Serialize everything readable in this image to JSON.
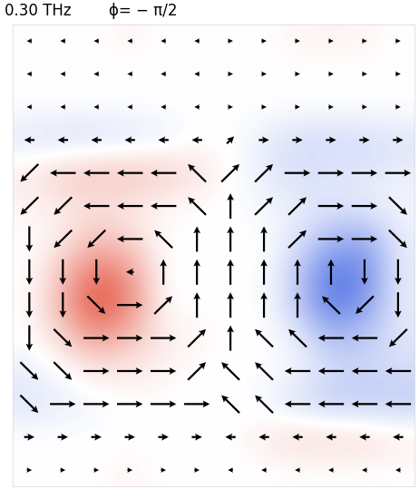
{
  "chart_data": {
    "type": "quiver",
    "title": "0.30 THz",
    "subtitle": "ϕ= − π/2",
    "tick_labels": false,
    "color": "#000000",
    "xlim": [
      -0.5,
      11.5
    ],
    "ylim": [
      -0.5,
      13.5
    ],
    "x": [
      0,
      1,
      2,
      3,
      4,
      5,
      6,
      7,
      8,
      9,
      10,
      11
    ],
    "y": [
      13,
      12,
      11,
      10,
      9,
      8,
      7,
      6,
      5,
      4,
      3,
      2,
      1,
      0
    ],
    "u": [
      [
        -0.2,
        -0.2,
        -0.2,
        -0.2,
        -0.2,
        -0.2,
        0.2,
        0.2,
        0.2,
        0.2,
        0.2,
        0.2
      ],
      [
        -0.2,
        -0.2,
        -0.2,
        -0.2,
        -0.2,
        -0.2,
        0.2,
        0.2,
        0.2,
        0.2,
        0.2,
        0.2
      ],
      [
        -0.2,
        -0.2,
        -0.2,
        -0.2,
        -0.2,
        -0.2,
        0.2,
        0.2,
        0.2,
        0.2,
        0.2,
        0.2
      ],
      [
        -0.4,
        -0.4,
        -0.4,
        -0.4,
        -0.4,
        -0.4,
        0.28,
        0.4,
        0.4,
        0.4,
        0.4,
        0.4
      ],
      [
        -0.7,
        -1,
        -1,
        -1,
        -1,
        -0.7,
        0.7,
        0.7,
        1,
        1,
        1,
        1
      ],
      [
        -0.7,
        -0.7,
        -1,
        -1,
        -1,
        -0.7,
        0,
        0.7,
        0.7,
        1,
        1,
        0.7
      ],
      [
        0,
        -0.7,
        -0.7,
        -1,
        -0.7,
        0,
        0,
        0,
        0.7,
        1,
        1,
        0.7
      ],
      [
        0,
        0,
        0,
        -0.3,
        0,
        0,
        0,
        0,
        0,
        0,
        0,
        0
      ],
      [
        0,
        0,
        0.7,
        1,
        0.7,
        0,
        0,
        0,
        0,
        -0.7,
        -0.7,
        0
      ],
      [
        0,
        0.7,
        1,
        1,
        1,
        0.7,
        0,
        -0.7,
        -0.7,
        -1,
        -1,
        -0.7
      ],
      [
        0.7,
        0.7,
        1,
        1,
        1,
        0.7,
        -0.7,
        -0.7,
        -1,
        -1,
        -1,
        -1
      ],
      [
        0.7,
        1,
        1,
        1,
        1,
        1,
        -0.7,
        -0.7,
        -1,
        -1,
        -1,
        -1
      ],
      [
        0.4,
        0.4,
        0.4,
        0.4,
        0.4,
        0.4,
        -0.4,
        -0.4,
        -0.4,
        -0.4,
        -0.4,
        -0.4
      ],
      [
        0.2,
        0.2,
        0.2,
        0.2,
        0.2,
        0.2,
        -0.2,
        -0.2,
        -0.2,
        -0.2,
        -0.2,
        -0.2
      ]
    ],
    "v": [
      [
        0,
        0,
        0,
        0,
        0,
        0,
        0,
        0,
        0,
        0,
        0,
        0
      ],
      [
        0,
        0,
        0,
        0,
        0,
        0,
        0,
        0,
        0,
        0,
        0,
        0
      ],
      [
        0,
        0,
        0,
        0,
        0,
        0,
        0,
        0,
        0,
        0,
        0,
        0
      ],
      [
        0,
        0,
        0,
        0,
        0,
        0,
        0.28,
        0,
        0,
        0,
        0,
        0
      ],
      [
        -0.7,
        0,
        0,
        0,
        0,
        0.7,
        0.7,
        0.7,
        0,
        0,
        0,
        0
      ],
      [
        -0.7,
        -0.7,
        0,
        0,
        0,
        0.7,
        1,
        0.7,
        0.7,
        0,
        0,
        -0.7
      ],
      [
        -1,
        -0.7,
        -0.7,
        0,
        0.7,
        1,
        1,
        1,
        0.7,
        0,
        0,
        -0.7
      ],
      [
        -1,
        -1,
        -1,
        0,
        1,
        1,
        1,
        1,
        1,
        1,
        -1,
        -1
      ],
      [
        -1,
        -1,
        -0.7,
        0,
        0.7,
        1,
        1,
        1,
        1,
        0.7,
        -0.7,
        -1
      ],
      [
        -1,
        -0.7,
        0,
        0,
        0,
        0.7,
        1,
        0.7,
        0.7,
        0,
        0,
        -0.7
      ],
      [
        -0.7,
        -0.7,
        0,
        0,
        0,
        0.7,
        0.7,
        0.7,
        0,
        0,
        0,
        0
      ],
      [
        -0.7,
        0,
        0,
        0,
        0,
        0,
        0.7,
        0.7,
        0,
        0,
        0,
        0
      ],
      [
        0,
        0,
        0,
        0,
        0,
        0,
        0,
        0,
        0,
        0,
        0,
        0
      ],
      [
        0,
        0,
        0,
        0,
        0,
        0,
        0,
        0,
        0,
        0,
        0,
        0
      ]
    ],
    "cells": [
      [
        0,
        0,
        0,
        0.05,
        0,
        0,
        0,
        0,
        0.05,
        0.05,
        0.05,
        0
      ],
      [
        0,
        0,
        0,
        0,
        0,
        0,
        0,
        0,
        0,
        0,
        0,
        0
      ],
      [
        0,
        0,
        0,
        0,
        0,
        0,
        0,
        0,
        0,
        0,
        0,
        0
      ],
      [
        -0.15,
        -0.2,
        -0.2,
        -0.15,
        -0.1,
        0,
        0,
        -0.1,
        -0.2,
        -0.2,
        -0.2,
        -0.15
      ],
      [
        0.1,
        0.25,
        0.3,
        0.3,
        0.25,
        0.15,
        0,
        -0.1,
        -0.2,
        -0.15,
        -0.15,
        -0.1
      ],
      [
        0.05,
        0.1,
        0.15,
        0.1,
        0.05,
        0,
        0,
        -0.05,
        -0.1,
        -0.15,
        -0.1,
        -0.05
      ],
      [
        0,
        0.1,
        0.3,
        0.2,
        0,
        0,
        0,
        0,
        -0.15,
        -0.4,
        -0.5,
        -0.1
      ],
      [
        0,
        0.3,
        0.7,
        0.5,
        0,
        0,
        0,
        0,
        -0.3,
        -0.8,
        -0.7,
        -0.1
      ],
      [
        0,
        0.4,
        0.9,
        0.6,
        0,
        0,
        0,
        0,
        -0.3,
        -0.8,
        -0.6,
        -0.1
      ],
      [
        0,
        0.2,
        0.5,
        0.3,
        0.1,
        0.05,
        0,
        0,
        -0.1,
        -0.4,
        -0.3,
        -0.15
      ],
      [
        -0.1,
        0,
        0.1,
        0.1,
        0.05,
        0,
        0,
        0,
        -0.05,
        -0.2,
        -0.25,
        -0.2
      ],
      [
        -0.15,
        -0.1,
        -0.05,
        0,
        0,
        0,
        0,
        -0.05,
        -0.2,
        -0.3,
        -0.3,
        -0.3
      ],
      [
        0,
        0,
        0,
        0,
        0,
        0,
        0,
        0.1,
        0.2,
        0.2,
        0.2,
        0.1
      ],
      [
        0,
        0,
        0,
        0.05,
        0,
        0,
        0,
        0,
        0,
        0,
        0,
        0
      ]
    ],
    "clim": [
      -1,
      1
    ]
  }
}
